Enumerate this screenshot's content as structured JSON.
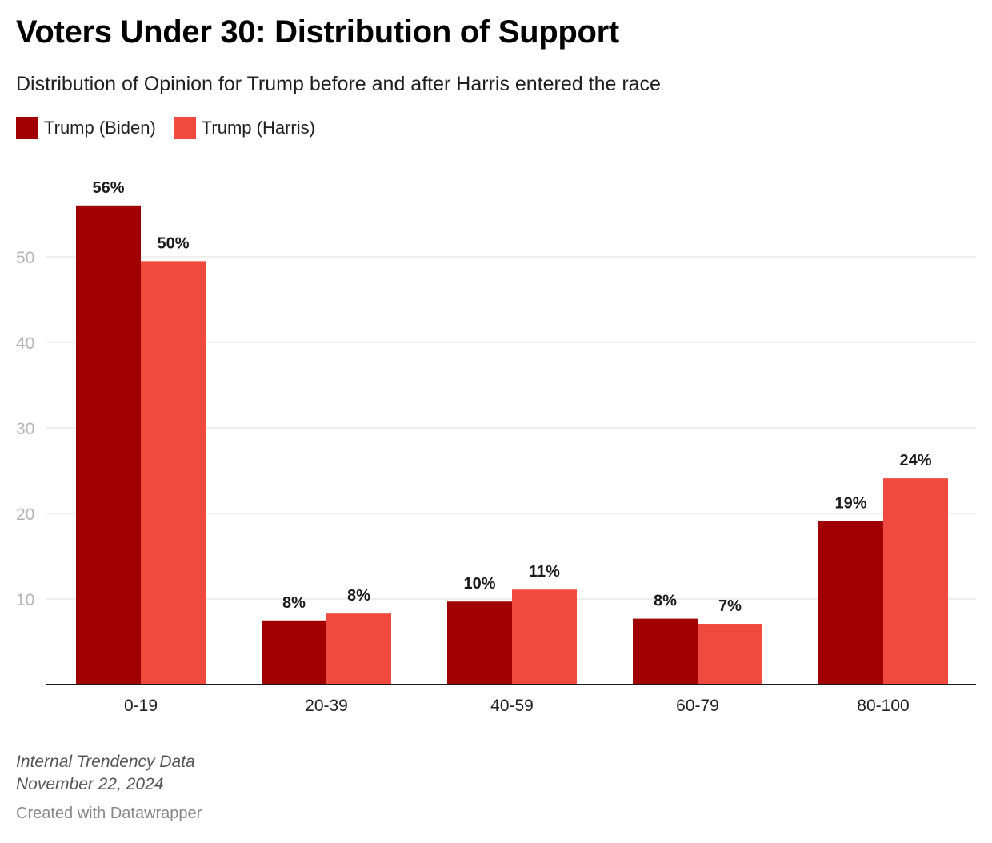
{
  "header": {
    "title": "Voters Under 30: Distribution of Support",
    "subtitle": "Distribution of Opinion for Trump before and after Harris entered the race"
  },
  "chart_data": {
    "type": "bar",
    "title": "Voters Under 30: Distribution of Support",
    "subtitle": "Distribution of Opinion for Trump before and after Harris entered the race",
    "xlabel": "",
    "ylabel": "",
    "categories": [
      "0-19",
      "20-39",
      "40-59",
      "60-79",
      "80-100"
    ],
    "series": [
      {
        "name": "Trump (Biden)",
        "color": "#a00000",
        "values": [
          56,
          7.5,
          9.7,
          7.7,
          19.1
        ],
        "labels": [
          "56%",
          "8%",
          "10%",
          "8%",
          "19%"
        ]
      },
      {
        "name": "Trump (Harris)",
        "color": "#f04a3e",
        "values": [
          49.5,
          8.3,
          11.1,
          7.1,
          24.1
        ],
        "labels": [
          "50%",
          "8%",
          "11%",
          "7%",
          "24%"
        ]
      }
    ],
    "yticks": [
      10,
      20,
      30,
      40,
      50
    ],
    "ylim": [
      0,
      60
    ],
    "grid": true,
    "legend_position": "top-left"
  },
  "footer": {
    "source": "Internal Trendency Data",
    "date": "November 22, 2024",
    "credit": "Created with Datawrapper"
  }
}
